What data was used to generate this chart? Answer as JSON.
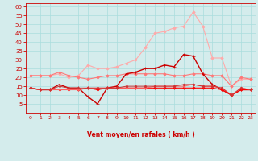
{
  "x": [
    0,
    1,
    2,
    3,
    4,
    5,
    6,
    7,
    8,
    9,
    10,
    11,
    12,
    13,
    14,
    15,
    16,
    17,
    18,
    19,
    20,
    21,
    22,
    23
  ],
  "series": [
    {
      "color": "#ffaaaa",
      "lw": 0.8,
      "marker": "D",
      "ms": 1.8,
      "values": [
        21,
        21,
        21,
        22,
        20,
        21,
        27,
        25,
        25,
        26,
        28,
        30,
        37,
        45,
        46,
        48,
        49,
        57,
        49,
        31,
        31,
        15,
        19,
        19
      ]
    },
    {
      "color": "#ff7777",
      "lw": 0.8,
      "marker": "D",
      "ms": 1.8,
      "values": [
        21,
        21,
        21,
        23,
        21,
        20,
        19,
        20,
        21,
        21,
        22,
        22,
        22,
        22,
        22,
        21,
        21,
        22,
        22,
        21,
        21,
        15,
        20,
        19
      ]
    },
    {
      "color": "#cc0000",
      "lw": 1.0,
      "marker": "+",
      "ms": 3.0,
      "values": [
        14,
        13,
        13,
        16,
        14,
        14,
        9,
        5,
        14,
        15,
        22,
        23,
        25,
        25,
        27,
        26,
        33,
        32,
        22,
        16,
        13,
        10,
        13,
        13
      ]
    },
    {
      "color": "#ff0000",
      "lw": 0.8,
      "marker": "D",
      "ms": 1.8,
      "values": [
        14,
        13,
        13,
        13,
        13,
        13,
        14,
        13,
        14,
        14,
        14,
        14,
        14,
        14,
        14,
        14,
        14,
        14,
        14,
        14,
        13,
        10,
        13,
        13
      ]
    },
    {
      "color": "#ff6666",
      "lw": 0.7,
      "marker": "D",
      "ms": 1.5,
      "values": [
        14,
        13,
        13,
        13,
        13,
        13,
        14,
        14,
        14,
        14,
        14,
        14,
        14,
        15,
        15,
        15,
        15,
        16,
        15,
        15,
        14,
        10,
        14,
        13
      ]
    },
    {
      "color": "#cc3333",
      "lw": 0.7,
      "marker": "D",
      "ms": 1.5,
      "values": [
        14,
        13,
        13,
        15,
        14,
        14,
        14,
        14,
        14,
        14,
        15,
        15,
        15,
        15,
        15,
        15,
        16,
        16,
        15,
        15,
        14,
        10,
        14,
        13
      ]
    }
  ],
  "arrow_angles_deg": [
    90,
    315,
    90,
    45,
    45,
    45,
    90,
    45,
    45,
    45,
    45,
    45,
    45,
    45,
    45,
    45,
    45,
    45,
    45,
    45,
    90,
    90,
    45,
    90
  ],
  "xlabel": "Vent moyen/en rafales ( km/h )",
  "xlim": [
    -0.5,
    23.5
  ],
  "ylim": [
    0,
    62
  ],
  "yticks": [
    5,
    10,
    15,
    20,
    25,
    30,
    35,
    40,
    45,
    50,
    55,
    60
  ],
  "xticks": [
    0,
    1,
    2,
    3,
    4,
    5,
    6,
    7,
    8,
    9,
    10,
    11,
    12,
    13,
    14,
    15,
    16,
    17,
    18,
    19,
    20,
    21,
    22,
    23
  ],
  "grid_color": "#aadddd",
  "bg_color": "#d4ecec",
  "tick_color": "#cc0000",
  "label_color": "#cc0000",
  "arrow_color": "#cc0000"
}
